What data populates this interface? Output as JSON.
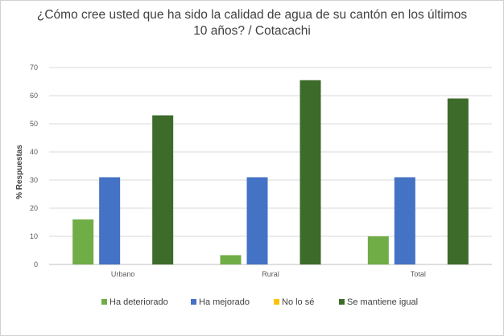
{
  "chart_data": {
    "type": "bar",
    "title": "¿Cómo cree usted que ha sido la calidad de agua de su cantón en los últimos 10 años? / Cotacachi",
    "ylabel": "% Respuestas",
    "xlabel": "",
    "ylim": [
      0,
      70
    ],
    "yticks": [
      0,
      10,
      20,
      30,
      40,
      50,
      60,
      70
    ],
    "grid": true,
    "legend_position": "bottom",
    "categories": [
      "Urbano",
      "Rural",
      "Total"
    ],
    "series": [
      {
        "name": "Ha deteriorado",
        "color": "#70ad47",
        "values": [
          16,
          3.3,
          10
        ]
      },
      {
        "name": "Ha mejorado",
        "color": "#4472c4",
        "values": [
          31,
          31,
          31
        ]
      },
      {
        "name": "No lo sé",
        "color": "#ffc000",
        "values": [
          0,
          0,
          0
        ]
      },
      {
        "name": "Se mantiene igual",
        "color": "#3d6b2a",
        "values": [
          53,
          65.5,
          59
        ]
      }
    ]
  }
}
